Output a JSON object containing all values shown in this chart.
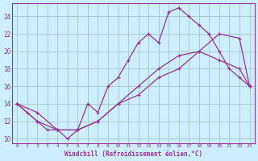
{
  "xlabel": "Windchill (Refroidissement éolien,°C)",
  "background_color": "#cceeff",
  "grid_color": "#aacccc",
  "line_color": "#993399",
  "xlim": [
    -0.5,
    23.5
  ],
  "ylim": [
    9.5,
    25.5
  ],
  "xticks": [
    0,
    1,
    2,
    3,
    4,
    5,
    6,
    7,
    8,
    9,
    10,
    11,
    12,
    13,
    14,
    15,
    16,
    17,
    18,
    19,
    20,
    21,
    22,
    23
  ],
  "yticks": [
    10,
    12,
    14,
    16,
    18,
    20,
    22,
    24
  ],
  "line1_x": [
    0,
    1,
    2,
    3,
    4,
    5,
    6,
    7,
    8,
    9,
    10,
    11,
    12,
    13,
    14,
    15,
    16,
    17,
    18,
    19,
    20,
    21,
    22,
    23
  ],
  "line1_y": [
    14,
    13,
    12,
    11,
    11,
    10,
    11,
    14,
    13,
    16,
    17,
    19,
    21,
    22,
    21,
    24.5,
    25,
    24,
    23,
    22,
    20,
    18,
    17,
    16
  ],
  "line2_x": [
    0,
    2,
    4,
    6,
    8,
    10,
    12,
    14,
    16,
    18,
    20,
    22,
    23
  ],
  "line2_y": [
    14,
    12,
    11,
    11,
    12,
    14,
    16,
    18,
    19.5,
    20,
    19,
    18,
    16
  ],
  "line3_x": [
    0,
    2,
    4,
    6,
    8,
    10,
    12,
    14,
    16,
    18,
    20,
    22,
    23
  ],
  "line3_y": [
    14,
    13,
    11,
    11,
    12,
    14,
    15,
    17,
    18,
    20,
    22,
    21.5,
    16
  ]
}
